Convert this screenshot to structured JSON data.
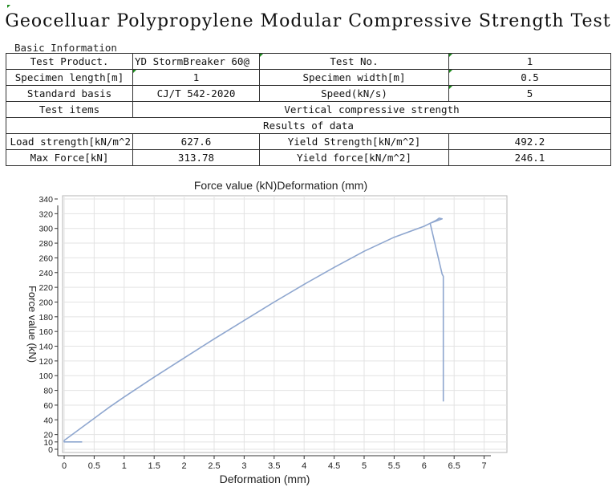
{
  "title": "Geocelluar Polypropylene Modular Compressive Strength Test",
  "basic_info_label": "Basic Information",
  "table": {
    "row1": {
      "k1": "Test Product.",
      "v1": "YD StormBreaker 60@",
      "k2": "Test No.",
      "v2": "1"
    },
    "row2": {
      "k1": "Specimen length[m]",
      "v1": "1",
      "k2": "Specimen width[m]",
      "v2": "0.5"
    },
    "row3": {
      "k1": "Standard basis",
      "v1": "CJ/T 542-2020",
      "k2": "Speed(kN/s)",
      "v2": "5"
    },
    "row4": {
      "k1": "Test items",
      "v1": "Vertical compressive strength"
    },
    "row5": {
      "header": "Results of data"
    },
    "row6": {
      "k1": "Load strength[kN/m^2",
      "v1": "627.6",
      "k2": "Yield Strength[kN/m^2]",
      "v2": "492.2"
    },
    "row7": {
      "k1": "Max Force[kN]",
      "v1": "313.78",
      "k2": "Yield force[kN/m^2]",
      "v2": "246.1"
    }
  },
  "chart_data": {
    "type": "line",
    "title": "Force value (kN)Deformation (mm)",
    "xlabel": "Deformation (mm)",
    "ylabel": "Force value (kN)",
    "xlim": [
      0,
      7
    ],
    "ylim": [
      0,
      340
    ],
    "x_ticks": [
      "0",
      "0.5",
      "1",
      "1.5",
      "2",
      "2.5",
      "3",
      "3.5",
      "4",
      "4.5",
      "5",
      "5.5",
      "6",
      "6.5",
      "7"
    ],
    "y_ticks": [
      "0",
      "10",
      "20",
      "40",
      "60",
      "80",
      "100",
      "120",
      "140",
      "160",
      "180",
      "200",
      "220",
      "240",
      "260",
      "280",
      "300",
      "320",
      "340"
    ],
    "grid": true,
    "line_color": "#8ea6cf",
    "series": [
      {
        "values": [
          [
            0.3,
            10
          ],
          [
            0.0,
            10
          ],
          [
            0.0,
            12
          ],
          [
            0.1,
            18
          ],
          [
            0.3,
            30
          ],
          [
            0.5,
            42
          ],
          [
            0.75,
            57
          ],
          [
            1.0,
            71
          ],
          [
            1.5,
            98
          ],
          [
            2.0,
            124
          ],
          [
            2.5,
            150
          ],
          [
            3.0,
            175
          ],
          [
            3.5,
            200
          ],
          [
            4.0,
            224
          ],
          [
            4.5,
            247
          ],
          [
            5.0,
            269
          ],
          [
            5.5,
            288
          ],
          [
            6.0,
            303
          ],
          [
            6.1,
            307
          ],
          [
            6.2,
            311
          ],
          [
            6.25,
            314
          ],
          [
            6.3,
            313
          ],
          [
            6.1,
            307
          ],
          [
            6.3,
            238
          ],
          [
            6.32,
            235
          ],
          [
            6.32,
            65
          ]
        ]
      }
    ]
  }
}
